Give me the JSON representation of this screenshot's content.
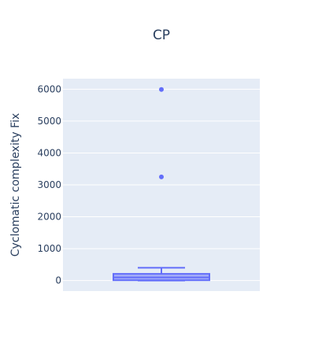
{
  "chart_data": {
    "type": "box",
    "title": "CP",
    "ylabel": "Cyclomatic complexity Fix",
    "xlabel": "",
    "ylim": [
      -330,
      6330
    ],
    "yticks": [
      0,
      1000,
      2000,
      3000,
      4000,
      5000,
      6000
    ],
    "ytick_labels": [
      "0",
      "1000",
      "2000",
      "3000",
      "4000",
      "5000",
      "6000"
    ],
    "grid": true,
    "series": [
      {
        "lower_fence": 0,
        "q1": 10,
        "median": 100,
        "q3": 210,
        "upper_fence": 400,
        "outliers": [
          3250,
          5990
        ]
      }
    ],
    "colors": {
      "box_line": "#636efa",
      "box_fill": "rgba(99,110,250,0.5)",
      "plot_bg": "#e5ecf6",
      "grid": "#ffffff",
      "text": "#2a3f5f"
    }
  }
}
